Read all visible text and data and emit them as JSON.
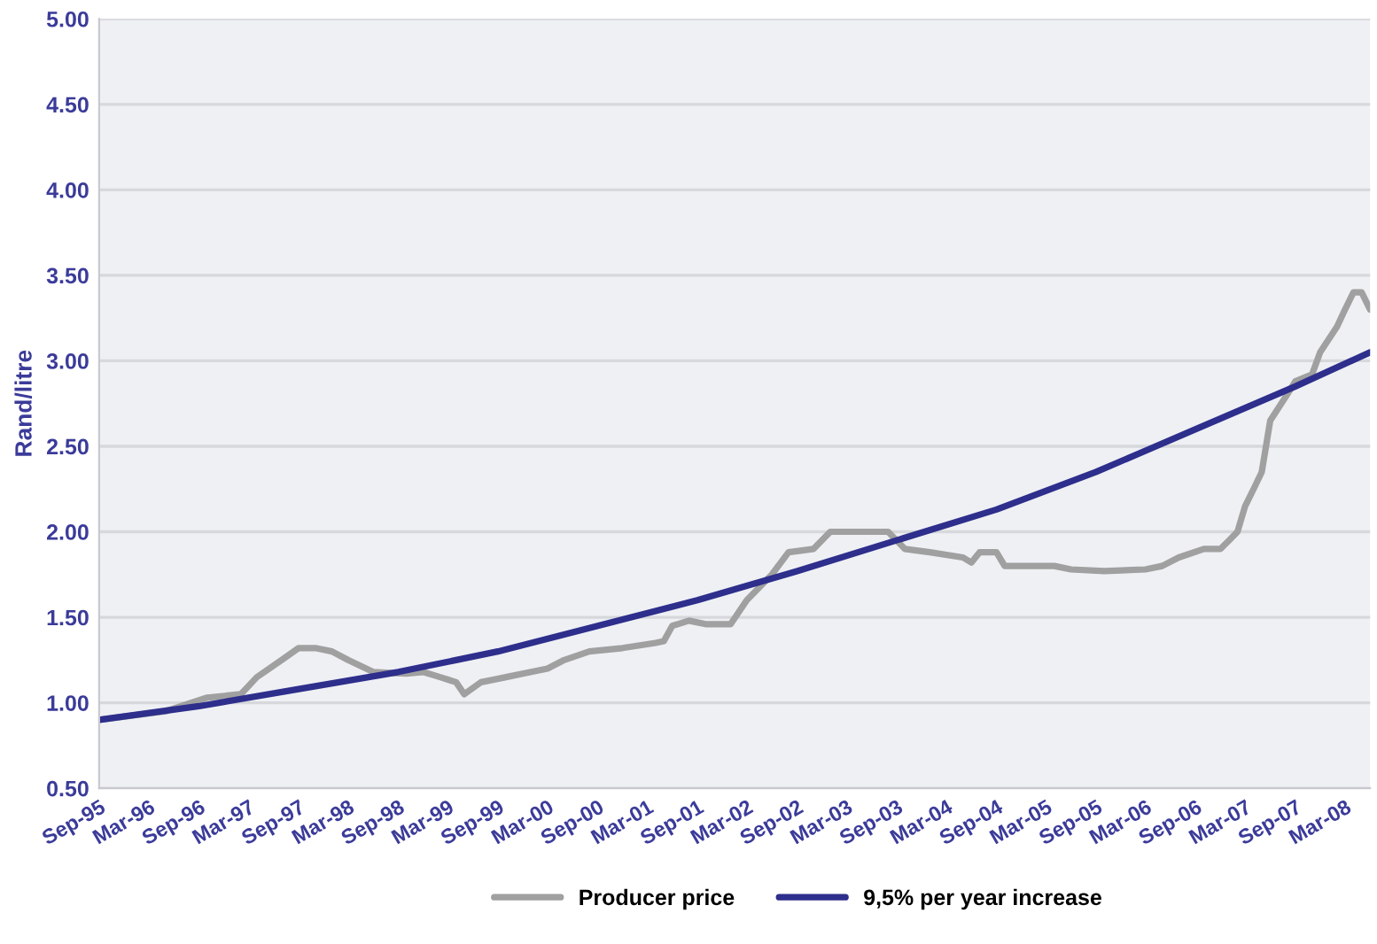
{
  "chart_data": {
    "type": "line",
    "ylabel": "Rand/litre",
    "xlim": [
      "1995-09",
      "2008-06"
    ],
    "xticks": [
      {
        "value": "1995-09",
        "label": "Sep-95"
      },
      {
        "value": "1996-03",
        "label": "Mar-96"
      },
      {
        "value": "1996-09",
        "label": "Sep-96"
      },
      {
        "value": "1997-03",
        "label": "Mar-97"
      },
      {
        "value": "1997-09",
        "label": "Sep-97"
      },
      {
        "value": "1998-03",
        "label": "Mar-98"
      },
      {
        "value": "1998-09",
        "label": "Sep-98"
      },
      {
        "value": "1999-03",
        "label": "Mar-99"
      },
      {
        "value": "1999-09",
        "label": "Sep-99"
      },
      {
        "value": "2000-03",
        "label": "Mar-00"
      },
      {
        "value": "2000-09",
        "label": "Sep-00"
      },
      {
        "value": "2001-03",
        "label": "Mar-01"
      },
      {
        "value": "2001-09",
        "label": "Sep-01"
      },
      {
        "value": "2002-03",
        "label": "Mar-02"
      },
      {
        "value": "2002-09",
        "label": "Sep-02"
      },
      {
        "value": "2003-03",
        "label": "Mar-03"
      },
      {
        "value": "2003-09",
        "label": "Sep-03"
      },
      {
        "value": "2004-03",
        "label": "Mar-04"
      },
      {
        "value": "2004-09",
        "label": "Sep-04"
      },
      {
        "value": "2005-03",
        "label": "Mar-05"
      },
      {
        "value": "2005-09",
        "label": "Sep-05"
      },
      {
        "value": "2006-03",
        "label": "Mar-06"
      },
      {
        "value": "2006-09",
        "label": "Sep-06"
      },
      {
        "value": "2007-03",
        "label": "Mar-07"
      },
      {
        "value": "2007-09",
        "label": "Sep-07"
      },
      {
        "value": "2008-03",
        "label": "Mar-08"
      }
    ],
    "ylim": [
      0.5,
      5.0
    ],
    "yticks": [
      {
        "value": 0.5,
        "label": "0.50"
      },
      {
        "value": 1.0,
        "label": "1.00"
      },
      {
        "value": 1.5,
        "label": "1.50"
      },
      {
        "value": 2.0,
        "label": "2.00"
      },
      {
        "value": 2.5,
        "label": "2.50"
      },
      {
        "value": 3.0,
        "label": "3.00"
      },
      {
        "value": 3.5,
        "label": "3.50"
      },
      {
        "value": 4.0,
        "label": "4.00"
      },
      {
        "value": 4.5,
        "label": "4.50"
      },
      {
        "value": 5.0,
        "label": "5.00"
      }
    ],
    "grid": "y",
    "legend": "bottom",
    "marker": "none",
    "line_style": "solid",
    "series": [
      {
        "name": "Producer price",
        "color": "#a0a0a0",
        "x": [
          "1995-09",
          "1996-05",
          "1996-10",
          "1997-02",
          "1997-04",
          "1997-07",
          "1997-09",
          "1997-11",
          "1998-01",
          "1998-03",
          "1998-06",
          "1998-10",
          "1998-12",
          "1999-02",
          "1999-04",
          "1999-05",
          "1999-07",
          "1999-10",
          "2000-01",
          "2000-03",
          "2000-05",
          "2000-08",
          "2000-12",
          "2001-04",
          "2001-05",
          "2001-06",
          "2001-08",
          "2001-10",
          "2002-01",
          "2002-03",
          "2002-06",
          "2002-08",
          "2002-11",
          "2002-12",
          "2003-01",
          "2003-08",
          "2003-10",
          "2004-01",
          "2004-05",
          "2004-06",
          "2004-07",
          "2004-09",
          "2004-10",
          "2005-04",
          "2005-06",
          "2005-10",
          "2006-03",
          "2006-05",
          "2006-07",
          "2006-10",
          "2006-12",
          "2007-01",
          "2007-02",
          "2007-03",
          "2007-04",
          "2007-05",
          "2007-06",
          "2007-08",
          "2007-09",
          "2007-11",
          "2007-12",
          "2008-02",
          "2008-03",
          "2008-04",
          "2008-05",
          "2008-06"
        ],
        "values": [
          0.9,
          0.95,
          1.03,
          1.05,
          1.15,
          1.25,
          1.32,
          1.32,
          1.3,
          1.25,
          1.18,
          1.17,
          1.18,
          1.15,
          1.12,
          1.05,
          1.12,
          1.15,
          1.18,
          1.2,
          1.25,
          1.3,
          1.32,
          1.35,
          1.36,
          1.45,
          1.48,
          1.46,
          1.46,
          1.6,
          1.75,
          1.88,
          1.9,
          1.95,
          2.0,
          2.0,
          1.9,
          1.88,
          1.85,
          1.82,
          1.88,
          1.88,
          1.8,
          1.8,
          1.78,
          1.77,
          1.78,
          1.8,
          1.85,
          1.9,
          1.9,
          1.95,
          2.0,
          2.15,
          2.25,
          2.35,
          2.65,
          2.8,
          2.88,
          2.92,
          3.05,
          3.2,
          3.3,
          3.4,
          3.4,
          3.3
        ]
      },
      {
        "name": "9,5% per year increase",
        "color": "#2e2e8c",
        "x": [
          "1995-09",
          "1996-09",
          "1997-09",
          "1998-09",
          "1999-09",
          "2000-09",
          "2001-09",
          "2002-09",
          "2003-09",
          "2004-09",
          "2005-09",
          "2006-09",
          "2007-09",
          "2008-06"
        ],
        "values": [
          0.9,
          0.98,
          1.08,
          1.18,
          1.3,
          1.45,
          1.6,
          1.77,
          1.95,
          2.13,
          2.35,
          2.6,
          2.85,
          3.05
        ]
      }
    ]
  }
}
